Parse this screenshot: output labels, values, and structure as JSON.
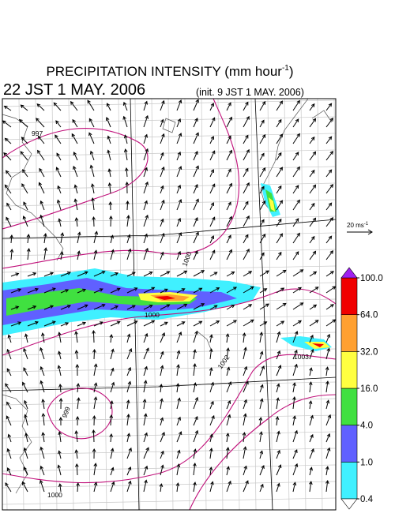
{
  "title": {
    "text": "PRECIPITATION INTENSITY (mm hour",
    "superscript": "-1",
    "suffix": ")"
  },
  "valid_time": "22 JST 1 MAY. 2006",
  "init_time": "(init. 9 JST 1 MAY. 2006)",
  "wind_reference": {
    "text": "20 ms",
    "superscript": "-1"
  },
  "isobar_labels": [
    "997",
    "1000",
    "1000",
    "1002",
    "1003",
    "999",
    "1000"
  ],
  "colorbar": {
    "ticks": [
      {
        "value": 0.4,
        "label": "0.4"
      },
      {
        "value": 1,
        "label": "1.0"
      },
      {
        "value": 4,
        "label": "4.0"
      },
      {
        "value": 16,
        "label": "16.0"
      },
      {
        "value": 32,
        "label": "32.0"
      },
      {
        "value": 64,
        "label": "64.0"
      },
      {
        "value": 100,
        "label": "100.0"
      }
    ],
    "colors": [
      "#40f0ff",
      "#6060ff",
      "#40e040",
      "#ffff40",
      "#ffa030",
      "#f00000"
    ],
    "over_color": "#a020f0",
    "under_color": "#ffffff"
  }
}
